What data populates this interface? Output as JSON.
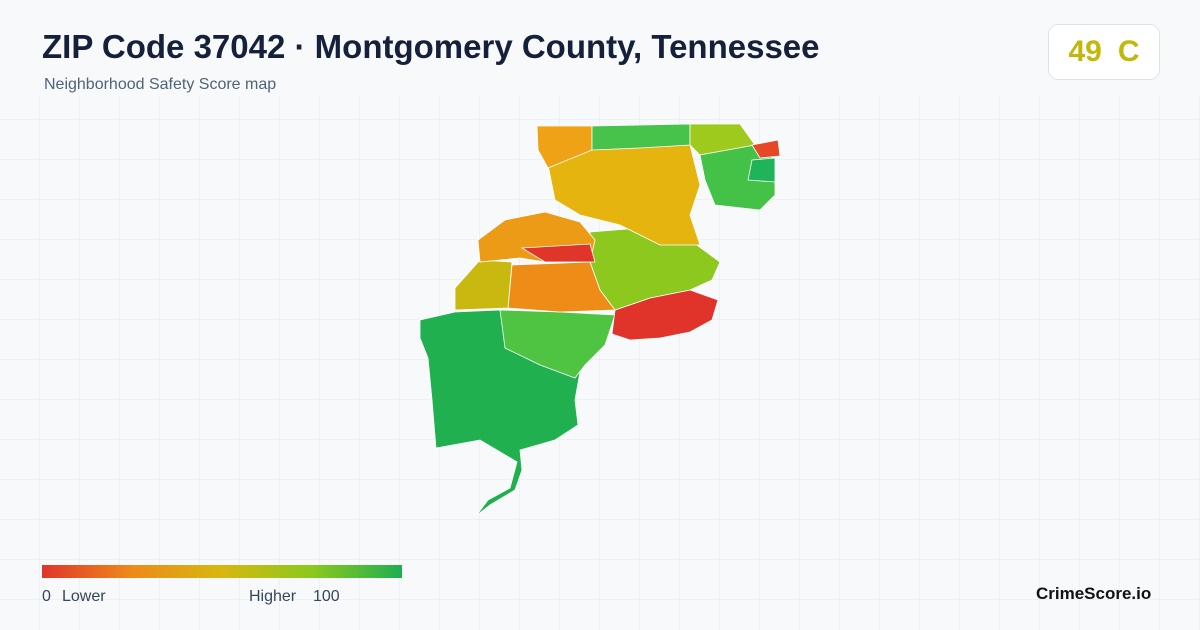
{
  "header": {
    "title": "ZIP Code 37042 · Montgomery County, Tennessee",
    "subtitle": "Neighborhood Safety Score map"
  },
  "score": {
    "value": "49",
    "grade": "C"
  },
  "legend": {
    "min": "0",
    "min_label": "Lower",
    "max_label": "Higher",
    "max": "100"
  },
  "brand": "CrimeScore.io"
}
